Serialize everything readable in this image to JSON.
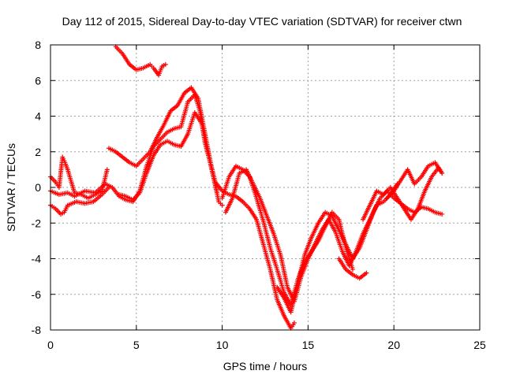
{
  "chart_data": {
    "type": "scatter",
    "title": "Day 112 of 2015, Sidereal Day-to-day VTEC variation (SDTVAR) for receiver ctwn",
    "xlabel": "GPS time / hours",
    "ylabel": "SDTVAR / TECUs",
    "xlim": [
      0,
      25
    ],
    "ylim": [
      -8,
      8
    ],
    "xticks": [
      "0",
      "5",
      "10",
      "15",
      "20",
      "25"
    ],
    "yticks": [
      "-8",
      "-6",
      "-4",
      "-2",
      "0",
      "2",
      "4",
      "6",
      "8"
    ],
    "grid": true,
    "marker": "plus",
    "color": "#ff0000",
    "series": [
      {
        "x": [
          3.8,
          4.2,
          4.6,
          5.0,
          5.4,
          5.8,
          6.0,
          6.3,
          6.5,
          6.7
        ],
        "y": [
          7.9,
          7.5,
          6.9,
          6.6,
          6.7,
          6.9,
          6.7,
          6.3,
          6.8,
          6.9
        ]
      },
      {
        "x": [
          0.0,
          0.3,
          0.6,
          0.8,
          1.0,
          1.5,
          2.0,
          2.5,
          3.0,
          3.4
        ],
        "y": [
          -1.0,
          -1.2,
          -1.5,
          -1.4,
          -1.0,
          -0.8,
          -0.9,
          -0.8,
          -0.4,
          0.0
        ]
      },
      {
        "x": [
          0.0,
          0.3,
          0.5,
          0.7,
          0.8,
          1.0,
          1.4,
          1.8,
          2.2,
          2.6,
          3.0,
          3.3
        ],
        "y": [
          0.6,
          0.3,
          0.0,
          1.7,
          1.5,
          1.0,
          -0.3,
          -0.4,
          -0.6,
          -0.4,
          -0.2,
          1.0
        ]
      },
      {
        "x": [
          0.0,
          0.5,
          1.0,
          1.4,
          2.0,
          2.6,
          3.2,
          3.6,
          4.0,
          4.4,
          4.8,
          5.2,
          5.6,
          6.0,
          6.4,
          6.8,
          7.2,
          7.6,
          8.0,
          8.4,
          8.7,
          9.0,
          9.3,
          9.6,
          9.8,
          10.0
        ],
        "y": [
          -0.2,
          -0.4,
          -0.3,
          -0.5,
          -0.2,
          -0.3,
          0.2,
          0.0,
          -0.5,
          -0.7,
          -0.8,
          -0.2,
          1.2,
          2.3,
          2.7,
          3.1,
          3.3,
          3.4,
          4.8,
          5.2,
          4.3,
          2.5,
          1.4,
          0.1,
          -0.8,
          -1.0
        ]
      },
      {
        "x": [
          3.4,
          3.8,
          4.2,
          4.6,
          5.0,
          5.4,
          5.8,
          6.2,
          6.6,
          7.0,
          7.4,
          7.8,
          8.2,
          8.6,
          9.0,
          9.4,
          9.7
        ],
        "y": [
          2.2,
          2.0,
          1.7,
          1.4,
          1.2,
          1.6,
          2.0,
          2.8,
          3.5,
          4.3,
          4.6,
          5.3,
          5.6,
          5.0,
          3.0,
          1.0,
          -0.3
        ]
      },
      {
        "x": [
          4.0,
          4.4,
          4.8,
          5.2,
          5.6,
          6.0,
          6.4,
          6.8,
          7.2,
          7.6,
          8.0,
          8.4,
          8.8,
          9.2,
          9.6,
          10.0,
          10.4,
          10.8,
          11.2,
          11.6,
          12.0,
          12.4,
          12.8,
          13.2,
          13.6,
          14.0,
          14.2
        ],
        "y": [
          -0.4,
          -0.5,
          -0.7,
          -0.3,
          0.8,
          1.8,
          2.4,
          2.6,
          2.4,
          2.3,
          3.0,
          4.2,
          3.6,
          1.8,
          0.3,
          -0.2,
          -0.4,
          -0.5,
          -0.8,
          -1.2,
          -1.8,
          -3.2,
          -4.6,
          -6.3,
          -7.2,
          -7.9,
          -7.6
        ]
      },
      {
        "x": [
          10.0,
          10.4,
          10.8,
          11.2,
          11.6,
          12.0,
          12.4,
          12.8,
          13.2,
          13.6,
          14.0,
          14.4,
          14.8,
          15.2,
          15.6,
          16.0,
          16.4,
          16.8,
          17.2,
          17.6
        ],
        "y": [
          -0.6,
          0.6,
          1.2,
          1.0,
          0.6,
          -0.6,
          -1.9,
          -3.4,
          -4.6,
          -5.9,
          -6.6,
          -5.2,
          -4.2,
          -3.6,
          -3.0,
          -2.2,
          -1.4,
          -1.8,
          -3.4,
          -4.6
        ]
      },
      {
        "x": [
          10.2,
          10.6,
          11.0,
          11.4,
          11.8,
          12.2,
          12.6,
          13.0,
          13.4,
          13.8,
          14.2,
          14.6,
          15.0,
          15.4,
          15.8,
          16.2,
          16.6,
          17.0,
          17.4,
          17.8,
          18.2,
          18.6,
          19.0,
          19.4,
          19.8,
          20.2
        ],
        "y": [
          -1.4,
          -0.6,
          0.8,
          1.0,
          0.2,
          -0.6,
          -1.6,
          -2.6,
          -3.8,
          -5.6,
          -6.4,
          -5.0,
          -4.0,
          -3.2,
          -2.4,
          -1.8,
          -2.5,
          -3.6,
          -4.4,
          -3.6,
          -2.6,
          -1.8,
          -1.0,
          -0.8,
          -0.4,
          0.2
        ]
      },
      {
        "x": [
          13.2,
          13.6,
          14.0,
          14.4,
          14.8,
          15.2,
          15.6,
          16.0,
          16.4,
          16.8,
          17.2,
          17.6,
          18.0,
          18.4,
          18.8,
          19.2,
          19.6,
          20.0,
          20.4,
          20.8,
          21.2,
          21.6,
          22.0,
          22.4,
          22.8
        ],
        "y": [
          -5.6,
          -6.2,
          -7.0,
          -5.4,
          -3.8,
          -2.8,
          -2.0,
          -1.4,
          -1.6,
          -2.4,
          -3.2,
          -4.0,
          -3.4,
          -2.4,
          -1.4,
          -0.6,
          -0.2,
          -0.6,
          -0.9,
          -1.2,
          -1.4,
          -1.1,
          -1.2,
          -1.4,
          -1.5
        ]
      },
      {
        "x": [
          16.8,
          17.2,
          17.6,
          18.0,
          18.4
        ],
        "y": [
          -4.0,
          -4.6,
          -4.9,
          -5.1,
          -4.8
        ]
      },
      {
        "x": [
          18.2,
          18.6,
          19.0,
          19.4,
          19.8,
          20.2,
          20.6,
          21.0,
          21.4,
          21.8,
          22.2,
          22.6,
          22.8
        ],
        "y": [
          -1.8,
          -1.0,
          -0.2,
          -0.4,
          0.0,
          -0.6,
          -1.2,
          -1.8,
          -1.2,
          -0.2,
          0.6,
          1.1,
          0.8
        ]
      },
      {
        "x": [
          19.6,
          20.0,
          20.4,
          20.8,
          21.2,
          21.6,
          22.0,
          22.4,
          22.8
        ],
        "y": [
          -0.6,
          -0.2,
          0.4,
          1.0,
          0.2,
          0.6,
          1.2,
          1.4,
          0.8
        ]
      }
    ]
  }
}
